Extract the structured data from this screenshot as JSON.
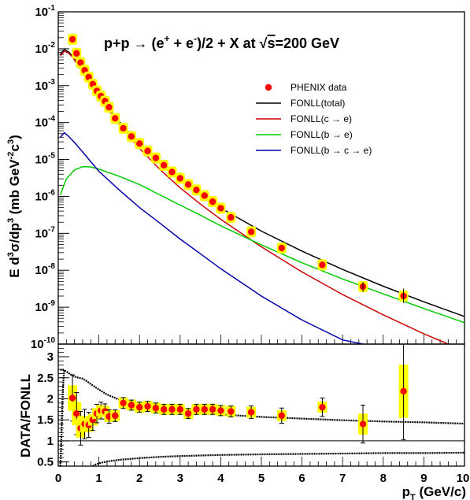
{
  "chart_data": [
    {
      "type": "scatter",
      "panel": "top",
      "title_parts": [
        "p+p → (e",
        "+",
        " + e",
        "-",
        ")/2 + X at √",
        "s",
        "=200 GeV"
      ],
      "ylabel_parts": [
        "E d",
        "3",
        "σ/dp",
        "3",
        " (mb GeV",
        "-2",
        "c",
        "3",
        ")"
      ],
      "xlim": [
        0,
        10
      ],
      "ylim": [
        1e-10,
        0.1
      ],
      "log_y": true,
      "y_ticks": [
        {
          "value": 1e-10,
          "mantissa": "10",
          "exponent": "-10"
        },
        {
          "value": 1e-09,
          "mantissa": "10",
          "exponent": "-9"
        },
        {
          "value": 1e-08,
          "mantissa": "10",
          "exponent": "-8"
        },
        {
          "value": 1e-07,
          "mantissa": "10",
          "exponent": "-7"
        },
        {
          "value": 1e-06,
          "mantissa": "10",
          "exponent": "-6"
        },
        {
          "value": 1e-05,
          "mantissa": "10",
          "exponent": "-5"
        },
        {
          "value": 0.0001,
          "mantissa": "10",
          "exponent": "-4"
        },
        {
          "value": 0.001,
          "mantissa": "10",
          "exponent": "-3"
        },
        {
          "value": 0.01,
          "mantissa": "10",
          "exponent": "-2"
        },
        {
          "value": 0.1,
          "mantissa": "10",
          "exponent": "-1"
        }
      ],
      "legend_position": "top-right",
      "legend": [
        {
          "label": "PHENIX data",
          "kind": "marker",
          "color": "#ff0000"
        },
        {
          "label": "FONLL(total)",
          "kind": "line",
          "color": "#000000"
        },
        {
          "label": "FONLL(c → e)",
          "kind": "line",
          "color": "#cc0000"
        },
        {
          "label": "FONLL(b → e)",
          "kind": "line",
          "color": "#00cc00"
        },
        {
          "label": "FONLL(b → c → e)",
          "kind": "line",
          "color": "#0000aa"
        }
      ],
      "series": [
        {
          "name": "PHENIX data",
          "kind": "points",
          "color": "#ff0000",
          "band_color": "#ffff00",
          "x": [
            0.35,
            0.45,
            0.55,
            0.65,
            0.75,
            0.85,
            0.95,
            1.05,
            1.15,
            1.25,
            1.4,
            1.6,
            1.8,
            2.0,
            2.2,
            2.4,
            2.6,
            2.8,
            3.0,
            3.2,
            3.4,
            3.6,
            3.8,
            4.0,
            4.25,
            4.75,
            5.5,
            6.5,
            7.5,
            8.5
          ],
          "y": [
            0.018,
            0.0075,
            0.0042,
            0.0026,
            0.0017,
            0.0011,
            0.00072,
            0.00052,
            0.00038,
            0.00026,
            0.00013,
            7e-05,
            4.2e-05,
            2.7e-05,
            1.7e-05,
            1.1e-05,
            7e-06,
            4.6e-06,
            3.1e-06,
            2.1e-06,
            1.5e-06,
            1.05e-06,
            7.2e-07,
            4.8e-07,
            2.7e-07,
            1.1e-07,
            4e-08,
            1.4e-08,
            3.6e-09,
            2e-09
          ]
        },
        {
          "name": "FONLL(total)",
          "kind": "curve",
          "color": "#000000",
          "x": [
            0.05,
            0.15,
            0.25,
            0.35,
            0.5,
            0.7,
            1.0,
            1.5,
            2.0,
            2.5,
            3.0,
            3.5,
            4.0,
            5.0,
            6.0,
            7.0,
            8.0,
            9.0,
            10.0
          ],
          "y": [
            0.007,
            0.0095,
            0.0083,
            0.0063,
            0.0036,
            0.0017,
            0.00055,
            0.000106,
            2.6e-05,
            7.9e-06,
            2.8e-06,
            1.1e-06,
            4.8e-07,
            1.15e-07,
            3.3e-08,
            1.05e-08,
            3.7e-09,
            1.4e-09,
            5.6e-10
          ]
        },
        {
          "name": "FONLL(c → e)",
          "kind": "curve",
          "color": "#cc0000",
          "x": [
            0.05,
            0.15,
            0.25,
            0.35,
            0.5,
            0.7,
            1.0,
            1.5,
            2.0,
            2.5,
            3.0,
            3.5,
            4.0,
            5.0,
            6.0,
            7.0,
            8.0,
            9.0,
            9.6
          ],
          "y": [
            0.0065,
            0.0086,
            0.0077,
            0.0059,
            0.0034,
            0.0016,
            0.0005,
            9e-05,
            2e-05,
            5.4e-06,
            1.7e-06,
            6.2e-07,
            2.4e-07,
            4.3e-08,
            9e-09,
            2.2e-09,
            6.2e-10,
            1.9e-10,
            1e-10
          ]
        },
        {
          "name": "FONLL(b → e)",
          "kind": "curve",
          "color": "#00cc00",
          "x": [
            0.05,
            0.2,
            0.4,
            0.6,
            0.8,
            1.0,
            1.5,
            2.0,
            2.5,
            3.0,
            3.5,
            4.0,
            5.0,
            6.0,
            7.0,
            8.0,
            9.0,
            10.0
          ],
          "y": [
            1.1e-06,
            3e-06,
            5.2e-06,
            6.4e-06,
            6.3e-06,
            5.5e-06,
            3.5e-06,
            2.1e-06,
            1.1e-06,
            5.8e-07,
            3.1e-07,
            1.6e-07,
            4.9e-08,
            1.6e-08,
            5.8e-09,
            2.3e-09,
            9.2e-10,
            3.8e-10
          ]
        },
        {
          "name": "FONLL(b → c → e)",
          "kind": "curve",
          "color": "#0000aa",
          "x": [
            0.05,
            0.15,
            0.25,
            0.4,
            0.6,
            0.8,
            1.0,
            1.5,
            2.0,
            2.5,
            3.0,
            3.5,
            4.0,
            5.0,
            6.0,
            7.0,
            7.5
          ],
          "y": [
            4e-05,
            5.3e-05,
            4.3e-05,
            2.9e-05,
            1.6e-05,
            8.7e-06,
            4.8e-06,
            1.5e-06,
            5e-07,
            1.9e-07,
            7e-08,
            2.8e-08,
            1.1e-08,
            2e-09,
            4.5e-10,
            1.3e-10,
            7.5e-11
          ]
        }
      ]
    },
    {
      "type": "scatter",
      "panel": "bottom",
      "ylabel": "DATA/FONLL",
      "xlabel_parts": [
        "p",
        "T",
        " (GeV/c)"
      ],
      "xlim": [
        0,
        10
      ],
      "ylim": [
        0.4,
        3.3
      ],
      "x_ticks": [
        "0",
        "1",
        "2",
        "3",
        "4",
        "5",
        "6",
        "7",
        "8",
        "9",
        "10"
      ],
      "y_ticks": [
        "0.5",
        "1",
        "1.5",
        "2",
        "2.5",
        "3"
      ],
      "reference_line_y": 1,
      "series": [
        {
          "name": "DATA/FONLL",
          "kind": "points",
          "color": "#ff0000",
          "band_color": "#ffff00",
          "x": [
            0.35,
            0.45,
            0.55,
            0.65,
            0.75,
            0.85,
            0.95,
            1.05,
            1.15,
            1.25,
            1.4,
            1.6,
            1.8,
            2.0,
            2.2,
            2.4,
            2.6,
            2.8,
            3.0,
            3.2,
            3.4,
            3.6,
            3.8,
            4.0,
            4.25,
            4.75,
            5.5,
            6.5,
            7.5,
            8.5
          ],
          "y": [
            2.02,
            1.65,
            1.3,
            1.4,
            1.38,
            1.5,
            1.65,
            1.72,
            1.7,
            1.58,
            1.6,
            1.9,
            1.85,
            1.8,
            1.82,
            1.78,
            1.75,
            1.75,
            1.75,
            1.65,
            1.75,
            1.75,
            1.75,
            1.72,
            1.7,
            1.68,
            1.6,
            1.8,
            1.4,
            2.18
          ],
          "yerr": [
            0.55,
            0.5,
            0.4,
            0.35,
            0.3,
            0.25,
            0.22,
            0.2,
            0.18,
            0.16,
            0.14,
            0.13,
            0.12,
            0.12,
            0.12,
            0.12,
            0.12,
            0.12,
            0.12,
            0.12,
            0.12,
            0.12,
            0.12,
            0.12,
            0.13,
            0.15,
            0.18,
            0.22,
            0.45,
            1.15
          ]
        },
        {
          "name": "upper uncertainty band",
          "kind": "curve",
          "color": "#000000",
          "x": [
            0.05,
            0.1,
            0.2,
            0.3,
            0.4,
            0.5,
            0.6,
            0.7,
            0.8,
            1.0,
            1.2,
            1.5,
            1.8,
            2.0,
            2.5,
            3.0,
            4.0,
            5.0,
            6.0,
            7.0,
            8.0,
            9.0,
            10.0
          ],
          "y": [
            2.68,
            2.7,
            2.65,
            2.58,
            2.53,
            2.5,
            2.48,
            2.42,
            2.35,
            2.22,
            2.1,
            1.98,
            1.9,
            1.85,
            1.8,
            1.73,
            1.63,
            1.57,
            1.53,
            1.49,
            1.46,
            1.44,
            1.41
          ]
        },
        {
          "name": "lower uncertainty band",
          "kind": "curve",
          "color": "#000000",
          "x": [
            0.85,
            0.9,
            1.0,
            1.2,
            1.5,
            2.0,
            2.5,
            3.0,
            4.0,
            5.0,
            6.0,
            7.0,
            8.0,
            9.0,
            10.0
          ],
          "y": [
            0.4,
            0.43,
            0.47,
            0.51,
            0.55,
            0.59,
            0.62,
            0.64,
            0.665,
            0.68,
            0.69,
            0.7,
            0.71,
            0.71,
            0.72
          ]
        },
        {
          "name": "steep edge",
          "kind": "curve",
          "color": "#000000",
          "x": [
            0.05,
            0.07,
            0.09,
            0.11,
            0.13,
            0.15
          ],
          "y": [
            0.4,
            0.8,
            1.5,
            2.1,
            2.5,
            2.68
          ]
        }
      ]
    }
  ]
}
